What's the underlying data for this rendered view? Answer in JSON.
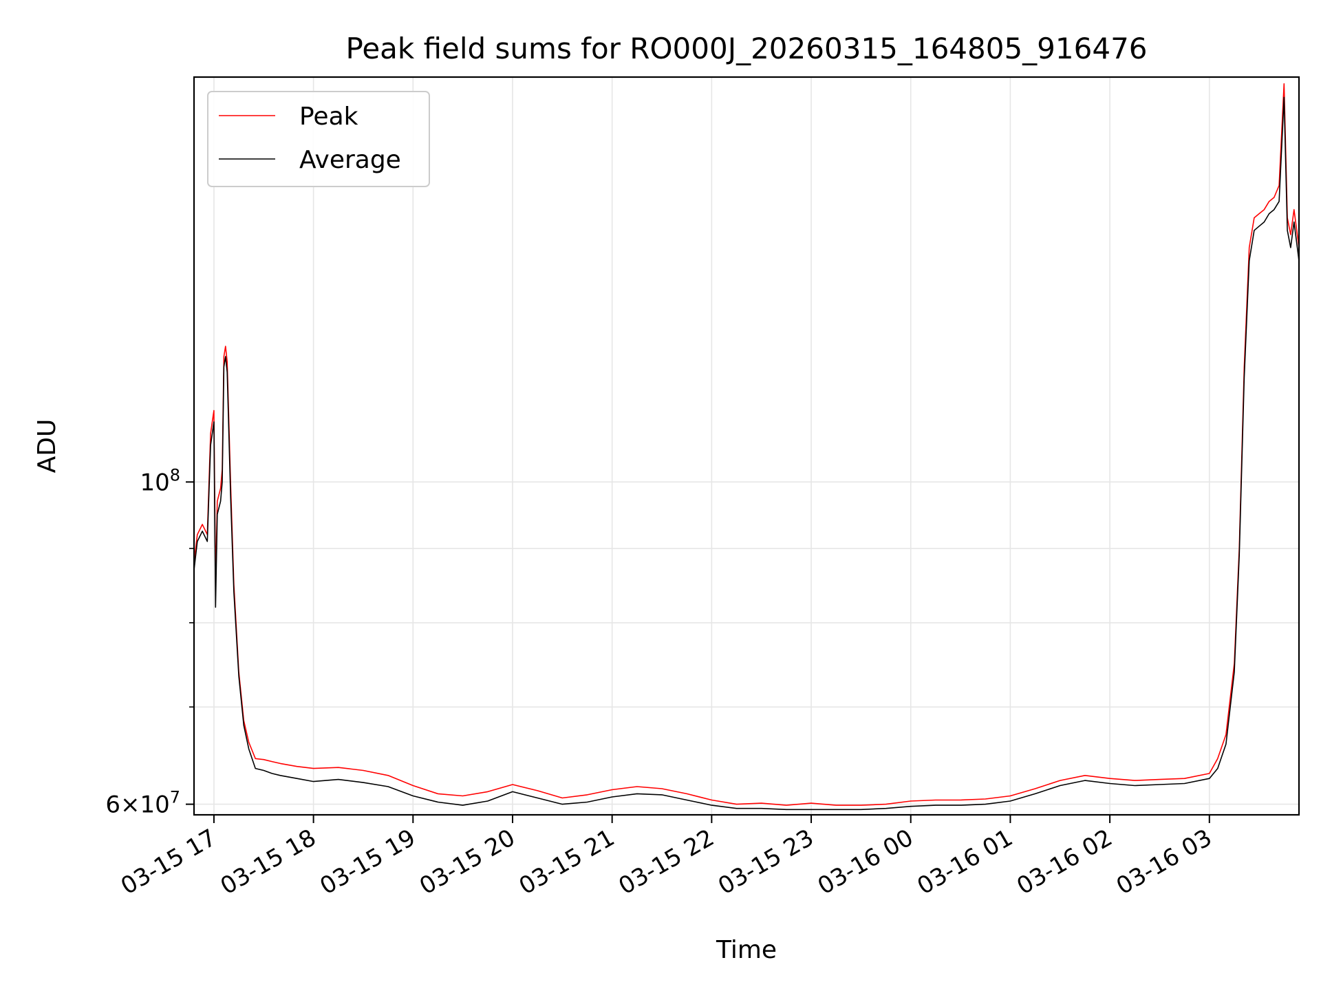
{
  "chart_data": {
    "type": "line",
    "title": "Peak field sums for RO000J_20260315_164805_916476",
    "xlabel": "Time",
    "ylabel": "ADU",
    "yscale": "log",
    "grid": true,
    "legend_position": "top-left",
    "xlim": [
      "03-15 16:48",
      "03-16 03:54"
    ],
    "ylim": [
      59000000,
      190000000
    ],
    "x_ticks": [
      "03-15 17",
      "03-15 18",
      "03-15 19",
      "03-15 20",
      "03-15 21",
      "03-15 22",
      "03-15 23",
      "03-16 00",
      "03-16 01",
      "03-16 02",
      "03-16 03"
    ],
    "y_ticks": [
      {
        "value": 100000000,
        "base": "10",
        "exp": "8",
        "mult": ""
      },
      {
        "value": 60000000,
        "base": "10",
        "exp": "7",
        "mult": "6"
      }
    ],
    "y_minor_ticks": [
      70000000,
      80000000,
      90000000
    ],
    "x": [
      "03-15 16:48",
      "03-15 16:50",
      "03-15 16:53",
      "03-15 16:56",
      "03-15 16:58",
      "03-15 17:00",
      "03-15 17:01",
      "03-15 17:02",
      "03-15 17:04",
      "03-15 17:05",
      "03-15 17:06",
      "03-15 17:07",
      "03-15 17:08",
      "03-15 17:10",
      "03-15 17:12",
      "03-15 17:15",
      "03-15 17:18",
      "03-15 17:21",
      "03-15 17:25",
      "03-15 17:30",
      "03-15 17:35",
      "03-15 17:40",
      "03-15 17:50",
      "03-15 18:00",
      "03-15 18:15",
      "03-15 18:30",
      "03-15 18:45",
      "03-15 19:00",
      "03-15 19:15",
      "03-15 19:30",
      "03-15 19:45",
      "03-15 20:00",
      "03-15 20:15",
      "03-15 20:30",
      "03-15 20:45",
      "03-15 21:00",
      "03-15 21:15",
      "03-15 21:30",
      "03-15 21:45",
      "03-15 22:00",
      "03-15 22:15",
      "03-15 22:30",
      "03-15 22:45",
      "03-15 23:00",
      "03-15 23:15",
      "03-15 23:30",
      "03-15 23:45",
      "03-16 00:00",
      "03-16 00:15",
      "03-16 00:30",
      "03-16 00:45",
      "03-16 01:00",
      "03-16 01:15",
      "03-16 01:30",
      "03-16 01:45",
      "03-16 02:00",
      "03-16 02:15",
      "03-16 02:30",
      "03-16 02:45",
      "03-16 03:00",
      "03-16 03:05",
      "03-16 03:10",
      "03-16 03:15",
      "03-16 03:18",
      "03-16 03:21",
      "03-16 03:24",
      "03-16 03:27",
      "03-16 03:30",
      "03-16 03:33",
      "03-16 03:36",
      "03-16 03:39",
      "03-16 03:42",
      "03-16 03:45",
      "03-16 03:47",
      "03-16 03:49",
      "03-16 03:51",
      "03-16 03:54"
    ],
    "series": [
      {
        "name": "Peak",
        "color": "#ff0000",
        "values": [
          88000000,
          92000000,
          93500000,
          92000000,
          108000000,
          112000000,
          85000000,
          97000000,
          99000000,
          102000000,
          122000000,
          124000000,
          121000000,
          100000000,
          85000000,
          74000000,
          68500000,
          66200000,
          64500000,
          64400000,
          64200000,
          64000000,
          63700000,
          63500000,
          63600000,
          63300000,
          62800000,
          61800000,
          61000000,
          60800000,
          61200000,
          61900000,
          61300000,
          60600000,
          60900000,
          61400000,
          61700000,
          61500000,
          61000000,
          60400000,
          60000000,
          60100000,
          59900000,
          60100000,
          59900000,
          59900000,
          60000000,
          60300000,
          60400000,
          60400000,
          60500000,
          60800000,
          61500000,
          62300000,
          62800000,
          62500000,
          62300000,
          62400000,
          62500000,
          63000000,
          64500000,
          67000000,
          75000000,
          90000000,
          120000000,
          145000000,
          152000000,
          153000000,
          154000000,
          156000000,
          157000000,
          160000000,
          188000000,
          152000000,
          148000000,
          154000000,
          145000000
        ]
      },
      {
        "name": "Average",
        "color": "#000000",
        "values": [
          87000000,
          91000000,
          92500000,
          91000000,
          106000000,
          110000000,
          82000000,
          95000000,
          97000000,
          100000000,
          120000000,
          122000000,
          119000000,
          98000000,
          84000000,
          73500000,
          68000000,
          65500000,
          63500000,
          63300000,
          63000000,
          62800000,
          62500000,
          62200000,
          62400000,
          62100000,
          61700000,
          60800000,
          60200000,
          59900000,
          60300000,
          61200000,
          60600000,
          60000000,
          60200000,
          60700000,
          61000000,
          60900000,
          60400000,
          59900000,
          59600000,
          59600000,
          59500000,
          59500000,
          59500000,
          59500000,
          59600000,
          59800000,
          59900000,
          59900000,
          60000000,
          60300000,
          61000000,
          61800000,
          62300000,
          62000000,
          61800000,
          61900000,
          62000000,
          62500000,
          63500000,
          66000000,
          74000000,
          89000000,
          118000000,
          142000000,
          149000000,
          150000000,
          151000000,
          153000000,
          154000000,
          156000000,
          184000000,
          149000000,
          145000000,
          151000000,
          142000000
        ]
      }
    ]
  }
}
